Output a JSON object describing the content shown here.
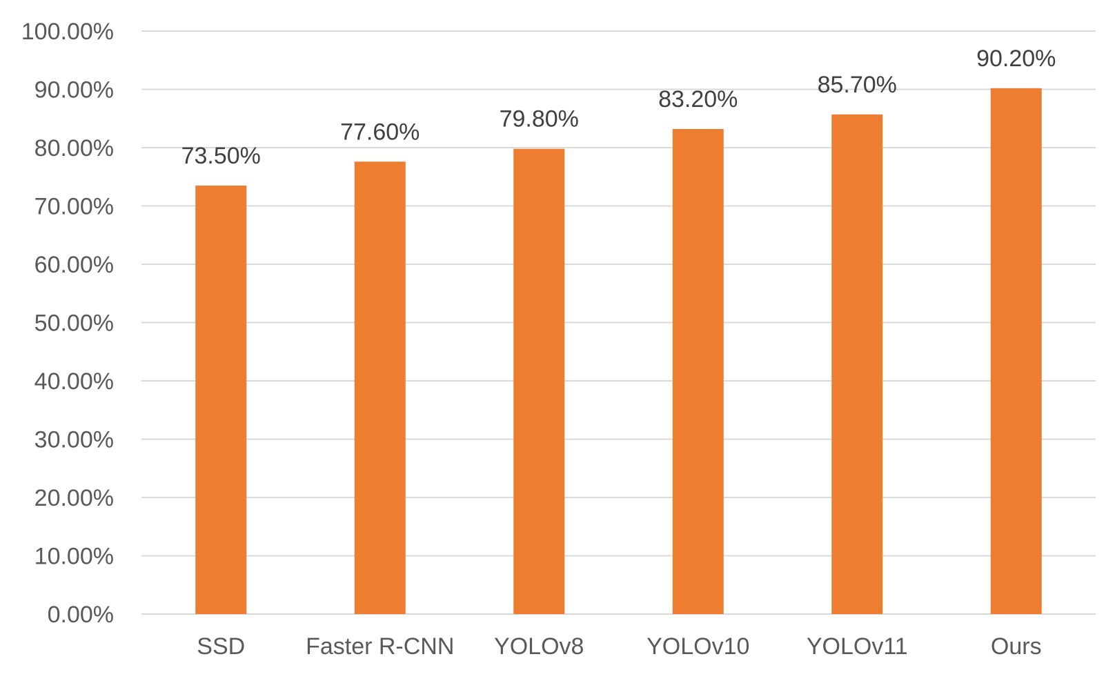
{
  "chart_data": {
    "type": "bar",
    "title": "",
    "xlabel": "",
    "ylabel": "",
    "categories": [
      "SSD",
      "Faster R-CNN",
      "YOLOv8",
      "YOLOv10",
      "YOLOv11",
      "Ours"
    ],
    "values": [
      73.5,
      77.6,
      79.8,
      83.2,
      85.7,
      90.2
    ],
    "data_labels": [
      "73.50%",
      "77.60%",
      "79.80%",
      "83.20%",
      "85.70%",
      "90.20%"
    ],
    "ylim": [
      0,
      100
    ],
    "yticks": [
      0,
      10,
      20,
      30,
      40,
      50,
      60,
      70,
      80,
      90,
      100
    ],
    "ytick_labels": [
      "0.00%",
      "10.00%",
      "20.00%",
      "30.00%",
      "40.00%",
      "50.00%",
      "60.00%",
      "70.00%",
      "80.00%",
      "90.00%",
      "100.00%"
    ],
    "grid": true,
    "legend": "none",
    "colors": {
      "bar": "#ED7D31",
      "grid": "#D9D9D9",
      "tick_text": "#595959",
      "label_text": "#404040"
    }
  }
}
